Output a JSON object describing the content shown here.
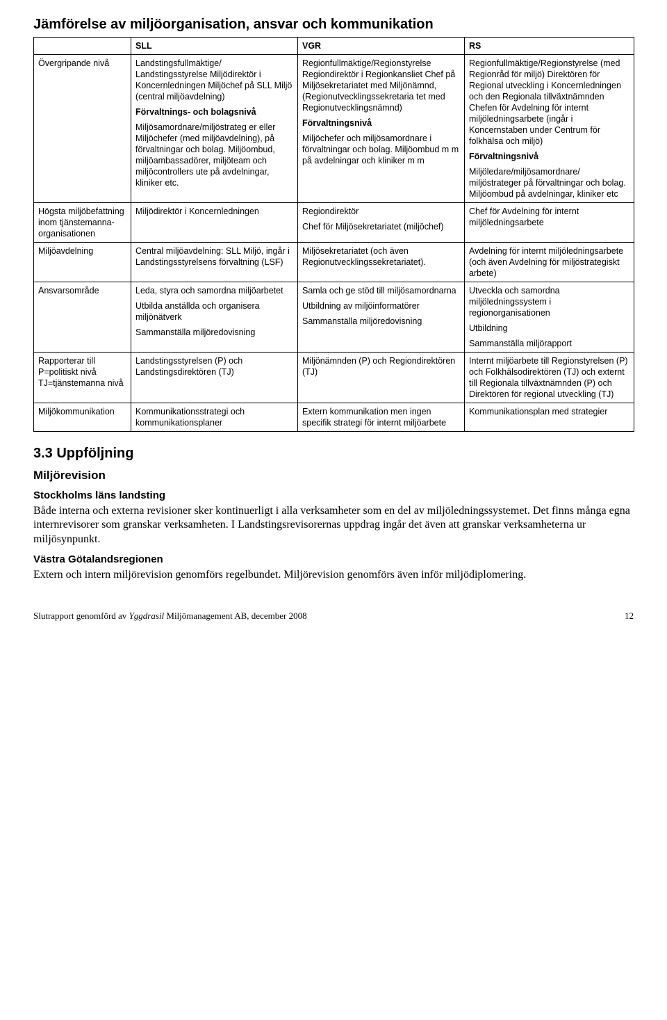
{
  "title": "Jämförelse av miljöorganisation, ansvar och kommunikation",
  "headers": {
    "col0": "",
    "col1": "SLL",
    "col2": "VGR",
    "col3": "RS"
  },
  "rows": [
    {
      "label": "Övergripande nivå",
      "sll": [
        {
          "b": false,
          "t": "Landstingsfullmäktige/ Landstingsstyrelse Miljödirektör i Koncernledningen Miljöchef på SLL Miljö (central miljöavdelning)"
        },
        {
          "b": true,
          "t": "Förvaltnings- och bolagsnivå"
        },
        {
          "b": false,
          "t": "Miljösamordnare/miljöstrateg er eller Miljöchefer (med miljöavdelning), på förvaltningar och bolag. Miljöombud, miljöambassadörer, miljöteam och miljöcontrollers ute på avdelningar, kliniker etc."
        }
      ],
      "vgr": [
        {
          "b": false,
          "t": "Regionfullmäktige/Regionstyrelse Regiondirektör i Regionkansliet Chef på Miljösekretariatet med Miljönämnd, (Regionutvecklingssekretaria tet med Regionutvecklingsnämnd)"
        },
        {
          "b": true,
          "t": "Förvaltningsnivå"
        },
        {
          "b": false,
          "t": "Miljöchefer och miljösamordnare i förvaltningar och bolag. Miljöombud m m på avdelningar och kliniker m m"
        }
      ],
      "rs": [
        {
          "b": false,
          "t": "Regionfullmäktige/Regionstyrelse (med Regionråd för miljö) Direktören för Regional utveckling i Koncernledningen och den Regionala tillväxtnämnden Chefen för Avdelning för internt miljöledningsarbete (ingår i Koncernstaben under Centrum för folkhälsa och miljö)"
        },
        {
          "b": true,
          "t": "Förvaltningsnivå"
        },
        {
          "b": false,
          "t": "Miljöledare/miljösamordnare/ miljöstrateger på förvaltningar och bolag. Miljöombud på avdelningar, kliniker etc"
        }
      ]
    },
    {
      "label": "Högsta miljöbefattning inom tjänstemanna­organisationen",
      "sll": [
        {
          "b": false,
          "t": "Miljödirektör i Koncernledningen"
        }
      ],
      "vgr": [
        {
          "b": false,
          "t": "Regiondirektör"
        },
        {
          "b": false,
          "t": "Chef för Miljösekretariatet (miljöchef)"
        }
      ],
      "rs": [
        {
          "b": false,
          "t": "Chef för Avdelning för internt miljöledningsarbete"
        }
      ]
    },
    {
      "label": "Miljöavdelning",
      "sll": [
        {
          "b": false,
          "t": "Central miljöavdelning: SLL Miljö, ingår i Landstingsstyrelsens förvaltning (LSF)"
        }
      ],
      "vgr": [
        {
          "b": false,
          "t": "Miljösekretariatet (och även Regionutvecklings­sekretariatet)."
        }
      ],
      "rs": [
        {
          "b": false,
          "t": "Avdelning för internt miljöledningsarbete (och även Avdelning för miljöstrategiskt arbete)"
        }
      ]
    },
    {
      "label": "Ansvarsområde",
      "sll": [
        {
          "b": false,
          "t": "Leda, styra och samordna miljöarbetet"
        },
        {
          "b": false,
          "t": "Utbilda anställda och organisera miljönätverk"
        },
        {
          "b": false,
          "t": "Sammanställa miljöredovisning"
        }
      ],
      "vgr": [
        {
          "b": false,
          "t": "Samla och ge stöd till miljösamordnarna"
        },
        {
          "b": false,
          "t": "Utbildning av miljöinformatörer"
        },
        {
          "b": false,
          "t": "Sammanställa miljöredovisning"
        }
      ],
      "rs": [
        {
          "b": false,
          "t": "Utveckla och samordna miljöledningssystem i regionorganisationen"
        },
        {
          "b": false,
          "t": "Utbildning"
        },
        {
          "b": false,
          "t": "Sammanställa miljörapport"
        }
      ]
    },
    {
      "label": "Rapporterar till P=politiskt nivå TJ=tjänstemanna nivå",
      "sll": [
        {
          "b": false,
          "t": "Landstingsstyrelsen (P) och Landstingsdirektören (TJ)"
        }
      ],
      "vgr": [
        {
          "b": false,
          "t": "Miljönämnden (P) och Regiondirektören (TJ)"
        }
      ],
      "rs": [
        {
          "b": false,
          "t": "Internt miljöarbete till Regionstyrelsen (P) och Folkhälsodirektören (TJ) och externt till Regionala tillväxtnämnden (P) och Direktören för regional utveckling (TJ)"
        }
      ]
    },
    {
      "label": "Miljö­kommunikation",
      "sll": [
        {
          "b": false,
          "t": "Kommunikationsstrategi och kommunikationsplaner"
        }
      ],
      "vgr": [
        {
          "b": false,
          "t": "Extern kommunikation men ingen specifik strategi för internt miljöarbete"
        }
      ],
      "rs": [
        {
          "b": false,
          "t": "Kommunikationsplan med strategier"
        }
      ]
    }
  ],
  "section": {
    "num_title": "3.3 Uppföljning",
    "sub1": "Miljörevision",
    "p1_h": "Stockholms läns landsting",
    "p1": "Både interna och externa revisioner sker kontinuerligt i alla verksamheter som en del av miljöledningssystemet. Det finns många egna internrevisorer som granskar verksamheten. I Landstingsrevisorernas uppdrag ingår det även att granskar verksamheterna ur miljösynpunkt.",
    "p2_h": "Västra Götalandsregionen",
    "p2": "Extern och intern miljörevision genomförs regelbundet. Miljörevision genomförs även inför miljödiplomering."
  },
  "footer": {
    "left_a": "Slutrapport genomförd av ",
    "left_b": "Yggdrasil",
    "left_c": " Miljömanagement AB, december 2008",
    "page": "12"
  }
}
